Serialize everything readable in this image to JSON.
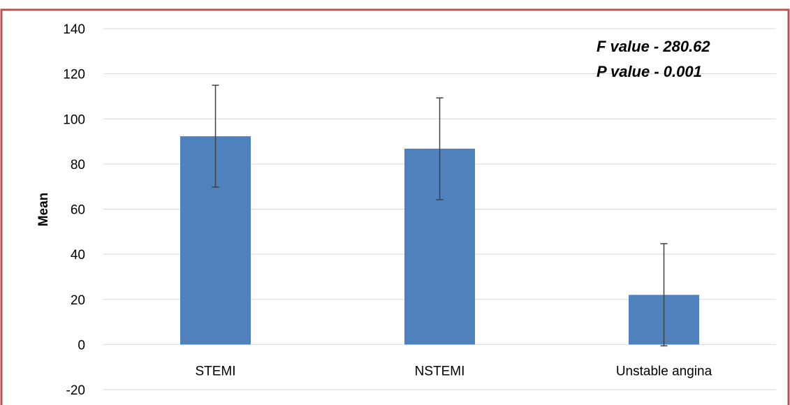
{
  "chart_data": {
    "type": "bar",
    "title": "",
    "xlabel": "",
    "ylabel": "Mean",
    "ylim": [
      -20,
      140
    ],
    "yticks": [
      -20,
      0,
      20,
      40,
      60,
      80,
      100,
      120,
      140
    ],
    "grid": true,
    "categories": [
      "STEMI",
      "NSTEMI",
      "Unstable angina"
    ],
    "values": [
      92.3,
      86.8,
      22.0
    ],
    "error_bars": [
      {
        "low": 69.8,
        "high": 114.9
      },
      {
        "low": 64.2,
        "high": 109.3
      },
      {
        "low": -0.6,
        "high": 44.7
      }
    ],
    "annotations": [
      "F value - 280.62",
      "P value - 0.001"
    ],
    "colors": {
      "bar": "#4f81bd",
      "frame": "#c0504d",
      "grid": "#d9d9d9",
      "error": "#404040"
    }
  }
}
